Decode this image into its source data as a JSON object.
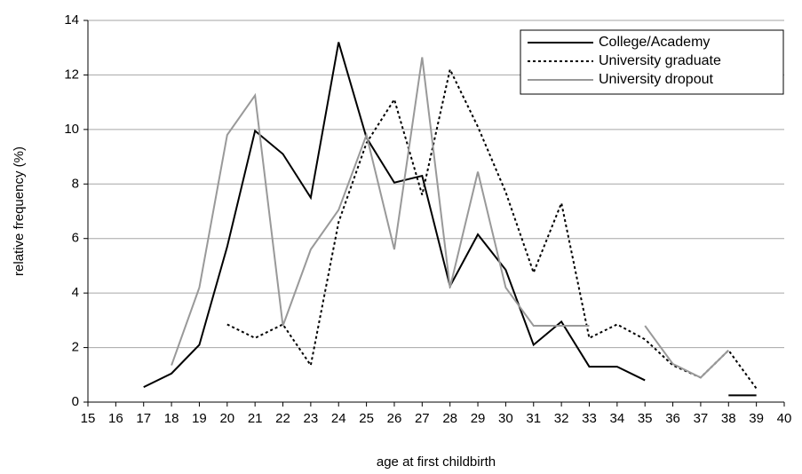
{
  "chart_data": {
    "type": "line",
    "xlabel": "age at first childbirth",
    "ylabel": "relative frequency (%)",
    "x": [
      17,
      18,
      19,
      20,
      21,
      22,
      23,
      24,
      25,
      26,
      27,
      28,
      29,
      30,
      31,
      32,
      33,
      34,
      35,
      36,
      37,
      38,
      39
    ],
    "series": [
      {
        "name": "College/Academy",
        "color": "#000000",
        "style": "solid",
        "values": [
          0.55,
          1.05,
          2.1,
          5.7,
          9.95,
          9.1,
          7.5,
          13.2,
          9.7,
          8.05,
          8.3,
          4.25,
          6.15,
          4.85,
          2.1,
          2.95,
          1.3,
          1.3,
          0.8,
          null,
          null,
          0.25,
          0.25
        ]
      },
      {
        "name": "University graduate",
        "color": "#000000",
        "style": "dotted",
        "values": [
          null,
          null,
          null,
          2.85,
          2.35,
          2.85,
          1.35,
          6.6,
          9.5,
          11.1,
          7.6,
          12.2,
          10.1,
          7.7,
          4.75,
          7.3,
          2.35,
          2.85,
          2.3,
          1.35,
          0.9,
          1.9,
          0.5
        ]
      },
      {
        "name": "University dropout",
        "color": "#999999",
        "style": "solid",
        "values": [
          null,
          1.35,
          4.2,
          9.8,
          11.25,
          2.8,
          5.6,
          7.05,
          9.8,
          5.6,
          12.65,
          4.2,
          8.45,
          4.2,
          2.8,
          2.8,
          2.8,
          null,
          2.8,
          1.4,
          0.9,
          1.9,
          null
        ]
      }
    ],
    "xlim": [
      15,
      40
    ],
    "xticks": [
      15,
      16,
      17,
      18,
      19,
      20,
      21,
      22,
      23,
      24,
      25,
      26,
      27,
      28,
      29,
      30,
      31,
      32,
      33,
      34,
      35,
      36,
      37,
      38,
      39,
      40
    ],
    "ylim": [
      0,
      14
    ],
    "yticks": [
      0,
      2,
      4,
      6,
      8,
      10,
      12,
      14
    ],
    "grid": true,
    "legend": "upper right"
  }
}
